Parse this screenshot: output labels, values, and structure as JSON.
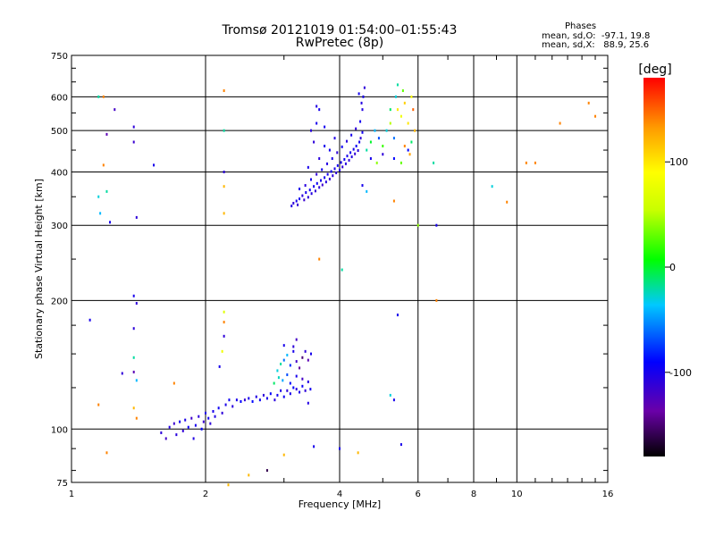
{
  "header": {
    "title_line1": "Tromsø 20121019 01:54:00–01:55:43",
    "title_line2": "RwPretec (8p)"
  },
  "stats": {
    "heading": "Phases",
    "line1": "mean, sd,O:  -97.1, 19.8",
    "line2": "mean, sd,X:   88.9, 25.6"
  },
  "colorbar": {
    "unit_label": "[deg]",
    "range": [
      -180,
      180
    ],
    "ticks": [
      {
        "value": 100,
        "label": "100"
      },
      {
        "value": 0,
        "label": "0"
      },
      {
        "value": -100,
        "label": "-100"
      }
    ]
  },
  "chart_data": {
    "type": "scatter",
    "xlabel": "Frequency [MHz]",
    "ylabel": "Stationary phase Virtual Height [km]",
    "xscale": "log",
    "yscale": "log",
    "xlim": [
      1,
      16
    ],
    "ylim": [
      75,
      750
    ],
    "grid": true,
    "xticks": [
      {
        "value": 1,
        "label": "1"
      },
      {
        "value": 2,
        "label": "2"
      },
      {
        "value": 4,
        "label": "4"
      },
      {
        "value": 6,
        "label": "6"
      },
      {
        "value": 8,
        "label": "8"
      },
      {
        "value": 10,
        "label": "10"
      },
      {
        "value": 16,
        "label": "16"
      }
    ],
    "yticks": [
      {
        "value": 75,
        "label": "75"
      },
      {
        "value": 100,
        "label": "100"
      },
      {
        "value": 200,
        "label": "200"
      },
      {
        "value": 300,
        "label": "300"
      },
      {
        "value": 400,
        "label": "400"
      },
      {
        "value": 500,
        "label": "500"
      },
      {
        "value": 600,
        "label": "600"
      },
      {
        "value": 750,
        "label": "750"
      }
    ],
    "points": [
      [
        1.59,
        98,
        -110
      ],
      [
        1.63,
        95,
        -120
      ],
      [
        1.66,
        101,
        -105
      ],
      [
        1.7,
        103,
        -115
      ],
      [
        1.72,
        97,
        -108
      ],
      [
        1.75,
        104,
        -98
      ],
      [
        1.78,
        99,
        -112
      ],
      [
        1.8,
        105,
        -102
      ],
      [
        1.83,
        101,
        -95
      ],
      [
        1.86,
        106,
        -118
      ],
      [
        1.88,
        95,
        -105
      ],
      [
        1.9,
        102,
        -100
      ],
      [
        1.93,
        107,
        -110
      ],
      [
        1.96,
        100,
        -92
      ],
      [
        1.98,
        104,
        -115
      ],
      [
        2.0,
        109,
        -105
      ],
      [
        2.03,
        106,
        -98
      ],
      [
        2.05,
        103,
        -110
      ],
      [
        2.08,
        110,
        -100
      ],
      [
        2.1,
        107,
        -104
      ],
      [
        2.14,
        112,
        -96
      ],
      [
        2.18,
        109,
        -110
      ],
      [
        2.22,
        114,
        -102
      ],
      [
        2.26,
        117,
        -95
      ],
      [
        2.3,
        113,
        -108
      ],
      [
        2.35,
        117,
        -100
      ],
      [
        2.4,
        116,
        -90
      ],
      [
        2.45,
        117,
        -112
      ],
      [
        2.5,
        118,
        -98
      ],
      [
        2.55,
        116,
        -88
      ],
      [
        2.6,
        119,
        -104
      ],
      [
        2.65,
        117,
        -95
      ],
      [
        2.7,
        120,
        -110
      ],
      [
        2.75,
        118,
        -100
      ],
      [
        2.8,
        121,
        -92
      ],
      [
        2.86,
        117,
        -108
      ],
      [
        2.9,
        120,
        -98
      ],
      [
        2.95,
        123,
        -104
      ],
      [
        3.0,
        119,
        -95
      ],
      [
        3.05,
        123,
        -110
      ],
      [
        3.1,
        121,
        -100
      ],
      [
        3.15,
        125,
        -92
      ],
      [
        3.2,
        124,
        -108
      ],
      [
        3.25,
        122,
        -100
      ],
      [
        3.3,
        126,
        -95
      ],
      [
        3.35,
        123,
        -110
      ],
      [
        3.4,
        115,
        -104
      ],
      [
        3.44,
        124,
        -98
      ],
      [
        2.9,
        137,
        -30
      ],
      [
        2.95,
        142,
        -20
      ],
      [
        3.0,
        145,
        -60
      ],
      [
        3.05,
        149,
        -40
      ],
      [
        3.1,
        141,
        -80
      ],
      [
        3.15,
        152,
        -100
      ],
      [
        3.2,
        144,
        -120
      ],
      [
        3.25,
        139,
        -140
      ],
      [
        3.3,
        147,
        -150
      ],
      [
        3.35,
        152,
        -110
      ],
      [
        3.4,
        145,
        -130
      ],
      [
        3.45,
        150,
        -100
      ],
      [
        2.85,
        128,
        -10
      ],
      [
        2.92,
        132,
        -25
      ],
      [
        2.98,
        130,
        -45
      ],
      [
        3.05,
        134,
        -70
      ],
      [
        3.1,
        128,
        -90
      ],
      [
        3.2,
        133,
        -100
      ],
      [
        3.3,
        131,
        -120
      ],
      [
        3.4,
        129,
        -105
      ],
      [
        3.0,
        157,
        -100
      ],
      [
        3.15,
        156,
        -110
      ],
      [
        3.2,
        162,
        -120
      ],
      [
        3.12,
        333,
        -105
      ],
      [
        3.15,
        338,
        -110
      ],
      [
        3.2,
        342,
        -100
      ],
      [
        3.22,
        335,
        -112
      ],
      [
        3.25,
        346,
        -98
      ],
      [
        3.3,
        352,
        -108
      ],
      [
        3.33,
        344,
        -115
      ],
      [
        3.36,
        358,
        -100
      ],
      [
        3.4,
        349,
        -110
      ],
      [
        3.43,
        363,
        -96
      ],
      [
        3.46,
        356,
        -105
      ],
      [
        3.5,
        370,
        -100
      ],
      [
        3.53,
        361,
        -112
      ],
      [
        3.56,
        376,
        -95
      ],
      [
        3.6,
        368,
        -108
      ],
      [
        3.63,
        382,
        -100
      ],
      [
        3.66,
        373,
        -115
      ],
      [
        3.7,
        388,
        -98
      ],
      [
        3.73,
        379,
        -106
      ],
      [
        3.76,
        395,
        -100
      ],
      [
        3.8,
        385,
        -112
      ],
      [
        3.83,
        401,
        -96
      ],
      [
        3.86,
        392,
        -108
      ],
      [
        3.9,
        407,
        -102
      ],
      [
        3.93,
        398,
        -110
      ],
      [
        3.96,
        414,
        -98
      ],
      [
        4.0,
        404,
        -105
      ],
      [
        4.03,
        421,
        -100
      ],
      [
        4.06,
        411,
        -112
      ],
      [
        4.1,
        428,
        -96
      ],
      [
        4.13,
        418,
        -108
      ],
      [
        4.16,
        436,
        -100
      ],
      [
        4.2,
        426,
        -110
      ],
      [
        4.23,
        444,
        -98
      ],
      [
        4.26,
        434,
        -105
      ],
      [
        4.3,
        452,
        -100
      ],
      [
        4.33,
        441,
        -112
      ],
      [
        4.36,
        460,
        -96
      ],
      [
        4.4,
        449,
        -108
      ],
      [
        4.43,
        470,
        -100
      ],
      [
        4.46,
        480,
        -110
      ],
      [
        4.5,
        495,
        -98
      ],
      [
        3.25,
        365,
        -100
      ],
      [
        3.35,
        372,
        -108
      ],
      [
        3.45,
        384,
        -100
      ],
      [
        3.55,
        395,
        -112
      ],
      [
        3.65,
        405,
        -98
      ],
      [
        3.75,
        418,
        -105
      ],
      [
        3.85,
        430,
        -100
      ],
      [
        3.95,
        444,
        -110
      ],
      [
        4.05,
        458,
        -96
      ],
      [
        4.15,
        472,
        -108
      ],
      [
        4.25,
        488,
        -100
      ],
      [
        4.35,
        505,
        -110
      ],
      [
        4.45,
        525,
        -98
      ],
      [
        4.5,
        560,
        -105
      ],
      [
        4.52,
        600,
        -100
      ],
      [
        4.55,
        630,
        -110
      ],
      [
        4.42,
        610,
        -98
      ],
      [
        4.48,
        580,
        -105
      ],
      [
        3.4,
        410,
        -100
      ],
      [
        3.6,
        430,
        -108
      ],
      [
        3.8,
        450,
        -98
      ],
      [
        3.5,
        470,
        -110
      ],
      [
        3.7,
        460,
        -100
      ],
      [
        3.9,
        480,
        -105
      ],
      [
        3.55,
        520,
        -100
      ],
      [
        3.45,
        500,
        -108
      ],
      [
        3.7,
        510,
        -98
      ],
      [
        3.6,
        560,
        -100
      ],
      [
        3.55,
        570,
        -105
      ],
      [
        4.6,
        450,
        -20
      ],
      [
        4.7,
        470,
        0
      ],
      [
        4.8,
        500,
        -40
      ],
      [
        4.9,
        480,
        -70
      ],
      [
        5.0,
        460,
        20
      ],
      [
        5.1,
        500,
        -30
      ],
      [
        5.2,
        520,
        50
      ],
      [
        5.3,
        480,
        -60
      ],
      [
        5.4,
        560,
        100
      ],
      [
        5.5,
        540,
        80
      ],
      [
        5.6,
        580,
        110
      ],
      [
        5.7,
        520,
        100
      ],
      [
        5.8,
        600,
        90
      ],
      [
        5.85,
        560,
        150
      ],
      [
        5.9,
        500,
        120
      ],
      [
        5.6,
        460,
        140
      ],
      [
        5.75,
        440,
        130
      ],
      [
        5.5,
        420,
        30
      ],
      [
        5.3,
        430,
        -90
      ],
      [
        5.0,
        440,
        -110
      ],
      [
        4.85,
        420,
        40
      ],
      [
        4.7,
        430,
        -100
      ],
      [
        5.2,
        560,
        -10
      ],
      [
        5.35,
        600,
        -30
      ],
      [
        5.4,
        640,
        -20
      ],
      [
        5.55,
        620,
        30
      ],
      [
        5.7,
        450,
        -90
      ],
      [
        5.8,
        470,
        -10
      ],
      [
        1.15,
        600,
        -20
      ],
      [
        1.18,
        600,
        140
      ],
      [
        1.25,
        560,
        -120
      ],
      [
        1.2,
        490,
        -130
      ],
      [
        1.38,
        510,
        -110
      ],
      [
        1.38,
        470,
        -115
      ],
      [
        1.22,
        305,
        -100
      ],
      [
        1.4,
        313,
        -110
      ],
      [
        1.53,
        415,
        -100
      ],
      [
        1.18,
        415,
        140
      ],
      [
        1.15,
        350,
        -30
      ],
      [
        1.2,
        360,
        -20
      ],
      [
        1.16,
        320,
        -40
      ],
      [
        2.2,
        620,
        140
      ],
      [
        2.2,
        500,
        -20
      ],
      [
        2.2,
        400,
        -110
      ],
      [
        2.2,
        370,
        120
      ],
      [
        2.2,
        320,
        120
      ],
      [
        2.2,
        188,
        70
      ],
      [
        2.2,
        178,
        140
      ],
      [
        2.2,
        165,
        -110
      ],
      [
        2.18,
        152,
        80
      ],
      [
        2.15,
        140,
        -100
      ],
      [
        1.1,
        180,
        -100
      ],
      [
        1.38,
        205,
        -100
      ],
      [
        1.4,
        197,
        -110
      ],
      [
        1.38,
        172,
        -110
      ],
      [
        1.38,
        147,
        -20
      ],
      [
        1.38,
        136,
        -130
      ],
      [
        1.3,
        135,
        -110
      ],
      [
        1.4,
        130,
        -40
      ],
      [
        1.38,
        112,
        120
      ],
      [
        1.4,
        106,
        140
      ],
      [
        1.7,
        128,
        140
      ],
      [
        1.15,
        114,
        140
      ],
      [
        1.2,
        88,
        140
      ],
      [
        2.5,
        78,
        120
      ],
      [
        2.75,
        80,
        -160
      ],
      [
        3.0,
        87,
        120
      ],
      [
        2.25,
        74,
        120
      ],
      [
        3.5,
        91,
        -100
      ],
      [
        4.0,
        90,
        -100
      ],
      [
        4.4,
        88,
        120
      ],
      [
        5.5,
        92,
        -100
      ],
      [
        5.3,
        117,
        -100
      ],
      [
        5.2,
        120,
        -30
      ],
      [
        5.4,
        185,
        -100
      ],
      [
        3.6,
        250,
        140
      ],
      [
        4.05,
        236,
        -20
      ],
      [
        4.5,
        372,
        -100
      ],
      [
        4.6,
        360,
        -40
      ],
      [
        5.3,
        342,
        140
      ],
      [
        6.5,
        420,
        -20
      ],
      [
        6.6,
        300,
        -100
      ],
      [
        6.6,
        200,
        140
      ],
      [
        8.8,
        370,
        -30
      ],
      [
        9.5,
        340,
        140
      ],
      [
        10.5,
        420,
        140
      ],
      [
        11,
        420,
        140
      ],
      [
        12.5,
        520,
        140
      ],
      [
        14.5,
        580,
        140
      ],
      [
        15,
        540,
        140
      ],
      [
        6.0,
        300,
        40
      ]
    ]
  }
}
